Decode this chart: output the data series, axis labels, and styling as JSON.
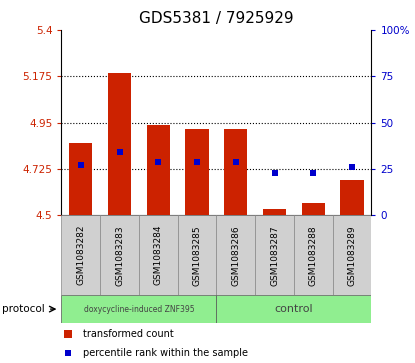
{
  "title": "GDS5381 / 7925929",
  "samples": [
    "GSM1083282",
    "GSM1083283",
    "GSM1083284",
    "GSM1083285",
    "GSM1083286",
    "GSM1083287",
    "GSM1083288",
    "GSM1083289"
  ],
  "bar_values": [
    4.85,
    5.19,
    4.94,
    4.92,
    4.92,
    4.53,
    4.56,
    4.67
  ],
  "bar_base": 4.5,
  "blue_values": [
    27,
    34,
    29,
    29,
    29,
    23,
    23,
    26
  ],
  "ylim_left": [
    4.5,
    5.4
  ],
  "ylim_right": [
    0,
    100
  ],
  "yticks_left": [
    4.5,
    4.725,
    4.95,
    5.175,
    5.4
  ],
  "yticks_right": [
    0,
    25,
    50,
    75,
    100
  ],
  "ytick_labels_left": [
    "4.5",
    "4.725",
    "4.95",
    "5.175",
    "5.4"
  ],
  "ytick_labels_right": [
    "0",
    "25",
    "50",
    "75",
    "100%"
  ],
  "hlines": [
    4.725,
    4.95,
    5.175
  ],
  "bar_color": "#cc2200",
  "blue_color": "#0000cc",
  "group1_label": "doxycycline-induced ZNF395",
  "group2_label": "control",
  "group1_count": 4,
  "group2_count": 4,
  "protocol_label": "protocol",
  "legend1": "transformed count",
  "legend2": "percentile rank within the sample",
  "title_fontsize": 11,
  "tick_label_color_left": "#cc2200",
  "tick_label_color_right": "#0000cc",
  "group_bg_color": "#90ee90",
  "sample_bg_color": "#d0d0d0",
  "bar_width": 0.6
}
